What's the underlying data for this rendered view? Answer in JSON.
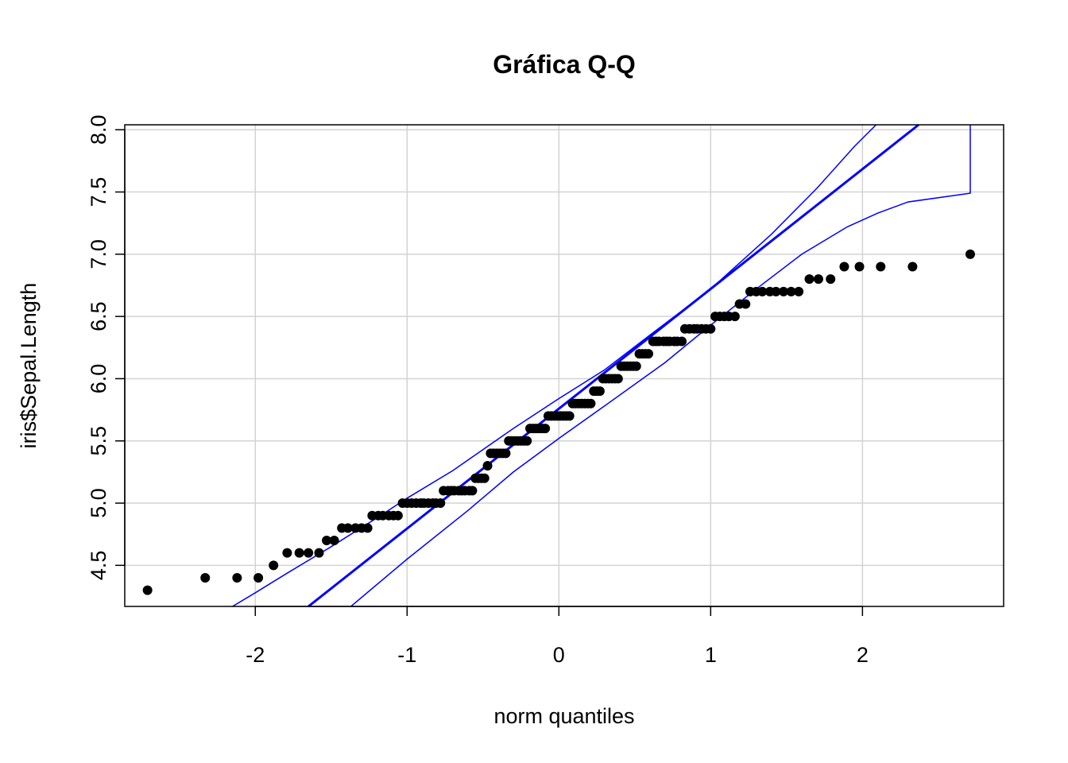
{
  "chart_data": {
    "type": "scatter",
    "title": "Gráfica Q-Q",
    "xlabel": "norm quantiles",
    "ylabel": "iris$Sepal.Length",
    "xlim": [
      -2.86,
      2.93
    ],
    "ylim": [
      4.17,
      8.04
    ],
    "xticks": [
      -2,
      -1,
      0,
      1,
      2
    ],
    "xtick_labels": [
      "-2",
      "-1",
      "0",
      "1",
      "2"
    ],
    "yticks": [
      4.5,
      5.0,
      5.5,
      6.0,
      6.5,
      7.0,
      7.5,
      8.0
    ],
    "ytick_labels": [
      "4.5",
      "5.0",
      "5.5",
      "6.0",
      "6.5",
      "7.0",
      "7.5",
      "8.0"
    ],
    "grid": true,
    "series": [
      {
        "kind": "points",
        "color": "#000000",
        "points": [
          [
            -2.71,
            4.3
          ],
          [
            -2.33,
            4.4
          ],
          [
            -2.12,
            4.4
          ],
          [
            -1.98,
            4.4
          ],
          [
            -1.88,
            4.5
          ],
          [
            -1.79,
            4.6
          ],
          [
            -1.71,
            4.6
          ],
          [
            -1.65,
            4.6
          ],
          [
            -1.58,
            4.6
          ],
          [
            -1.53,
            4.7
          ],
          [
            -1.48,
            4.7
          ],
          [
            -1.43,
            4.8
          ],
          [
            -1.39,
            4.8
          ],
          [
            -1.34,
            4.8
          ],
          [
            -1.3,
            4.8
          ],
          [
            -1.26,
            4.8
          ],
          [
            -1.23,
            4.9
          ],
          [
            -1.19,
            4.9
          ],
          [
            -1.16,
            4.9
          ],
          [
            -1.12,
            4.9
          ],
          [
            -1.09,
            4.9
          ],
          [
            -1.06,
            4.9
          ],
          [
            -1.03,
            5.0
          ],
          [
            -1.0,
            5.0
          ],
          [
            -0.97,
            5.0
          ],
          [
            -0.94,
            5.0
          ],
          [
            -0.91,
            5.0
          ],
          [
            -0.89,
            5.0
          ],
          [
            -0.86,
            5.0
          ],
          [
            -0.83,
            5.0
          ],
          [
            -0.81,
            5.0
          ],
          [
            -0.78,
            5.0
          ],
          [
            -0.76,
            5.1
          ],
          [
            -0.73,
            5.1
          ],
          [
            -0.71,
            5.1
          ],
          [
            -0.69,
            5.1
          ],
          [
            -0.66,
            5.1
          ],
          [
            -0.64,
            5.1
          ],
          [
            -0.62,
            5.1
          ],
          [
            -0.59,
            5.1
          ],
          [
            -0.57,
            5.1
          ],
          [
            -0.55,
            5.2
          ],
          [
            -0.53,
            5.2
          ],
          [
            -0.51,
            5.2
          ],
          [
            -0.49,
            5.2
          ],
          [
            -0.47,
            5.3
          ],
          [
            -0.45,
            5.4
          ],
          [
            -0.43,
            5.4
          ],
          [
            -0.41,
            5.4
          ],
          [
            -0.39,
            5.4
          ],
          [
            -0.37,
            5.4
          ],
          [
            -0.35,
            5.4
          ],
          [
            -0.33,
            5.5
          ],
          [
            -0.31,
            5.5
          ],
          [
            -0.29,
            5.5
          ],
          [
            -0.27,
            5.5
          ],
          [
            -0.25,
            5.5
          ],
          [
            -0.23,
            5.5
          ],
          [
            -0.21,
            5.5
          ],
          [
            -0.19,
            5.6
          ],
          [
            -0.17,
            5.6
          ],
          [
            -0.15,
            5.6
          ],
          [
            -0.13,
            5.6
          ],
          [
            -0.11,
            5.6
          ],
          [
            -0.09,
            5.6
          ],
          [
            -0.07,
            5.7
          ],
          [
            -0.05,
            5.7
          ],
          [
            -0.03,
            5.7
          ],
          [
            -0.01,
            5.7
          ],
          [
            0.01,
            5.7
          ],
          [
            0.03,
            5.7
          ],
          [
            0.05,
            5.7
          ],
          [
            0.07,
            5.7
          ],
          [
            0.09,
            5.8
          ],
          [
            0.11,
            5.8
          ],
          [
            0.13,
            5.8
          ],
          [
            0.15,
            5.8
          ],
          [
            0.17,
            5.8
          ],
          [
            0.19,
            5.8
          ],
          [
            0.21,
            5.8
          ],
          [
            0.23,
            5.9
          ],
          [
            0.25,
            5.9
          ],
          [
            0.27,
            5.9
          ],
          [
            0.29,
            6.0
          ],
          [
            0.31,
            6.0
          ],
          [
            0.33,
            6.0
          ],
          [
            0.35,
            6.0
          ],
          [
            0.37,
            6.0
          ],
          [
            0.39,
            6.0
          ],
          [
            0.41,
            6.1
          ],
          [
            0.43,
            6.1
          ],
          [
            0.45,
            6.1
          ],
          [
            0.47,
            6.1
          ],
          [
            0.49,
            6.1
          ],
          [
            0.51,
            6.1
          ],
          [
            0.53,
            6.2
          ],
          [
            0.55,
            6.2
          ],
          [
            0.57,
            6.2
          ],
          [
            0.59,
            6.2
          ],
          [
            0.62,
            6.3
          ],
          [
            0.64,
            6.3
          ],
          [
            0.66,
            6.3
          ],
          [
            0.69,
            6.3
          ],
          [
            0.71,
            6.3
          ],
          [
            0.73,
            6.3
          ],
          [
            0.76,
            6.3
          ],
          [
            0.78,
            6.3
          ],
          [
            0.81,
            6.3
          ],
          [
            0.83,
            6.4
          ],
          [
            0.86,
            6.4
          ],
          [
            0.89,
            6.4
          ],
          [
            0.91,
            6.4
          ],
          [
            0.94,
            6.4
          ],
          [
            0.97,
            6.4
          ],
          [
            1.0,
            6.4
          ],
          [
            1.03,
            6.5
          ],
          [
            1.06,
            6.5
          ],
          [
            1.09,
            6.5
          ],
          [
            1.12,
            6.5
          ],
          [
            1.16,
            6.5
          ],
          [
            1.19,
            6.6
          ],
          [
            1.23,
            6.6
          ],
          [
            1.26,
            6.7
          ],
          [
            1.3,
            6.7
          ],
          [
            1.34,
            6.7
          ],
          [
            1.39,
            6.7
          ],
          [
            1.43,
            6.7
          ],
          [
            1.48,
            6.7
          ],
          [
            1.53,
            6.7
          ],
          [
            1.58,
            6.7
          ],
          [
            1.65,
            6.8
          ],
          [
            1.71,
            6.8
          ],
          [
            1.79,
            6.8
          ],
          [
            1.88,
            6.9
          ],
          [
            1.98,
            6.9
          ],
          [
            2.12,
            6.9
          ],
          [
            2.33,
            6.9
          ],
          [
            2.71,
            7.0
          ]
        ]
      },
      {
        "kind": "reference-line",
        "color": "#0000ff",
        "points": [
          [
            -1.65,
            4.17
          ],
          [
            2.37,
            8.04
          ]
        ]
      },
      {
        "kind": "envelope-upper",
        "color": "#0000ff",
        "points": [
          [
            -2.15,
            4.17
          ],
          [
            -2.0,
            4.28
          ],
          [
            -1.8,
            4.43
          ],
          [
            -1.5,
            4.65
          ],
          [
            -1.2,
            4.88
          ],
          [
            -1.0,
            5.04
          ],
          [
            -0.7,
            5.26
          ],
          [
            -0.3,
            5.6
          ],
          [
            0.0,
            5.84
          ],
          [
            0.3,
            6.07
          ],
          [
            0.6,
            6.35
          ],
          [
            1.0,
            6.72
          ],
          [
            1.4,
            7.16
          ],
          [
            1.7,
            7.53
          ],
          [
            1.95,
            7.87
          ],
          [
            2.09,
            8.04
          ]
        ]
      },
      {
        "kind": "envelope-lower",
        "color": "#0000ff",
        "points": [
          [
            -1.37,
            4.17
          ],
          [
            -1.0,
            4.55
          ],
          [
            -0.6,
            4.94
          ],
          [
            -0.3,
            5.25
          ],
          [
            0.0,
            5.52
          ],
          [
            0.3,
            5.78
          ],
          [
            0.7,
            6.13
          ],
          [
            1.0,
            6.43
          ],
          [
            1.3,
            6.72
          ],
          [
            1.6,
            7.0
          ],
          [
            1.9,
            7.22
          ],
          [
            2.1,
            7.33
          ],
          [
            2.3,
            7.42
          ],
          [
            2.71,
            7.49
          ],
          [
            2.71,
            8.04
          ]
        ]
      }
    ]
  }
}
